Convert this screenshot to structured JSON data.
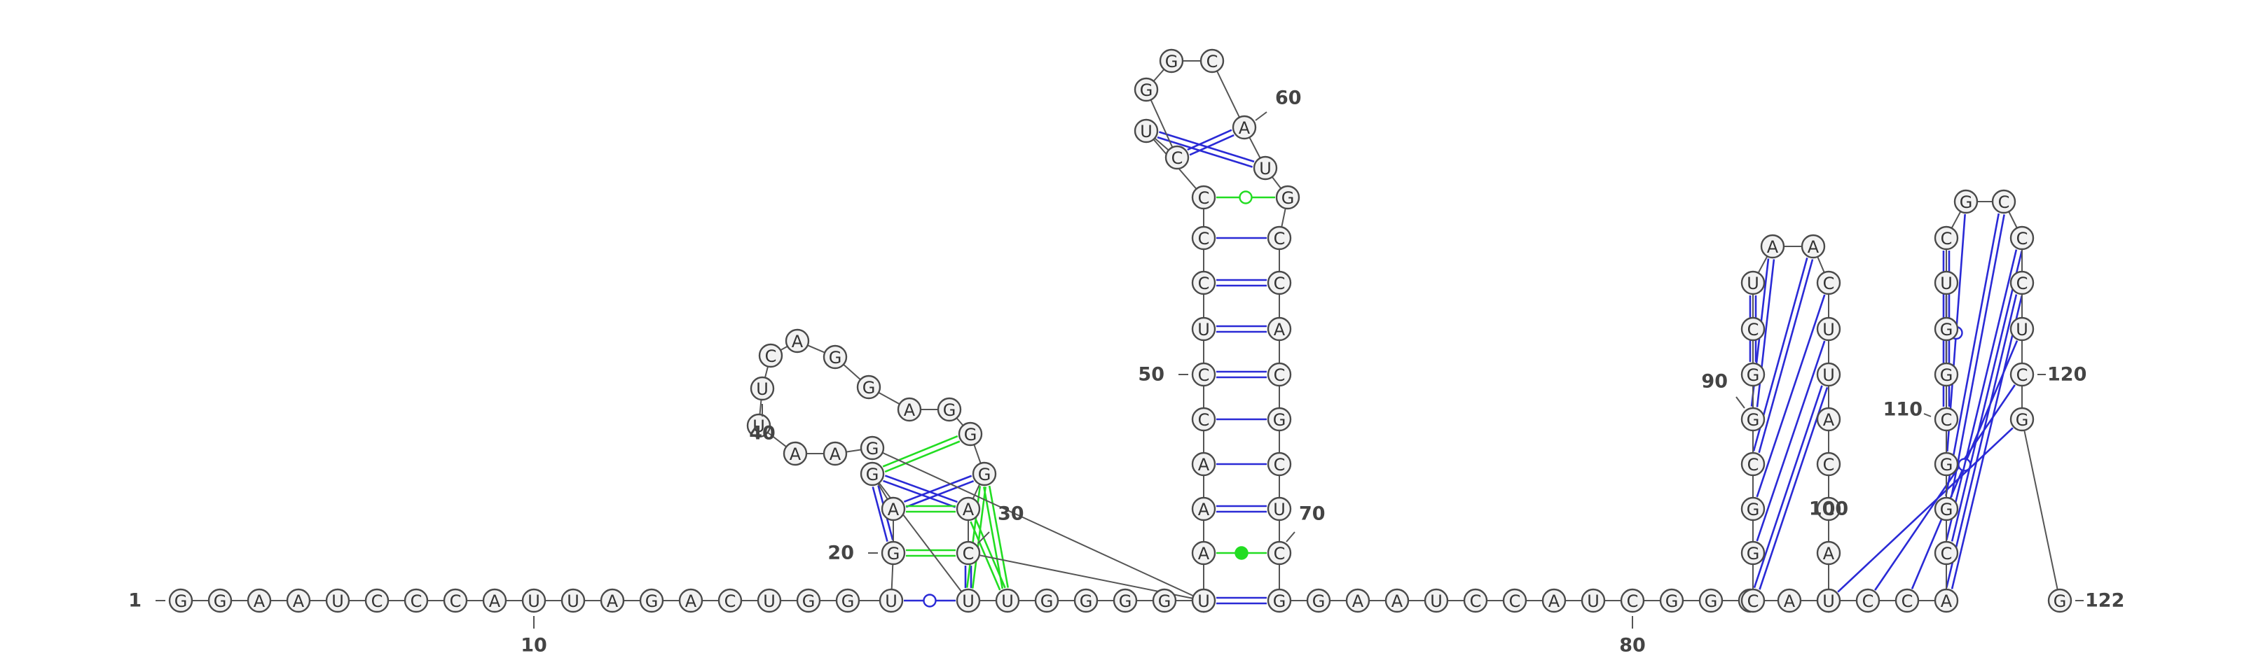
{
  "diagram": {
    "sequence": "GGAAUCCCAUUAGACUGGUGAGUUGGGGUCAGGGAGGACUUAAGUAAACCUCCCUCGGCAUGCCACGCUCGGAAUCCAUCGGCAACGGCGGCUAACUUACCAUCCACGGCGGUCGCCCUCGG",
    "sequence_length": 122,
    "colors": {
      "canonical_pair": "#2a2ad6",
      "noncanonical_pair": "#22dd22",
      "backbone": "#555555",
      "circle_fill": "#f2f2f2",
      "circle_stroke": "#4a4a4a",
      "text": "#333333"
    },
    "index_labels": [
      {
        "text": "1",
        "index": 1
      },
      {
        "text": "10",
        "index": 10
      },
      {
        "text": "20",
        "index": 20
      },
      {
        "text": "30",
        "index": 30
      },
      {
        "text": "40",
        "index": 40
      },
      {
        "text": "50",
        "index": 50
      },
      {
        "text": "60",
        "index": 60
      },
      {
        "text": "70",
        "index": 70
      },
      {
        "text": "80",
        "index": 80
      },
      {
        "text": "90",
        "index": 90
      },
      {
        "text": "100",
        "index": 100
      },
      {
        "text": "110",
        "index": 110
      },
      {
        "text": "120",
        "index": 120
      },
      {
        "text": "122",
        "index": 122
      }
    ],
    "pairs": [
      {
        "i": 19,
        "j": 23,
        "style": "circle",
        "color": "canonical"
      },
      {
        "i": 20,
        "j": 22,
        "style": "double",
        "color": "canonical"
      },
      {
        "i": 21,
        "j": 32,
        "style": "double",
        "color": "canonical"
      },
      {
        "i": 22,
        "j": 31,
        "style": "double",
        "color": "canonical"
      },
      {
        "i": 23,
        "j": 30,
        "style": "double",
        "color": "canonical"
      },
      {
        "i": 23,
        "j": 32,
        "style": "double",
        "color": "noncanonical"
      },
      {
        "i": 24,
        "j": 31,
        "style": "double",
        "color": "noncanonical"
      },
      {
        "i": 20,
        "j": 30,
        "style": "double",
        "color": "noncanonical"
      },
      {
        "i": 21,
        "j": 31,
        "style": "double",
        "color": "noncanonical"
      },
      {
        "i": 22,
        "j": 33,
        "style": "double",
        "color": "noncanonical"
      },
      {
        "i": 24,
        "j": 32,
        "style": "double",
        "color": "noncanonical"
      },
      {
        "i": 45,
        "j": 71,
        "style": "double",
        "color": "canonical"
      },
      {
        "i": 46,
        "j": 70,
        "style": "filled",
        "color": "noncanonical"
      },
      {
        "i": 47,
        "j": 69,
        "style": "double",
        "color": "canonical"
      },
      {
        "i": 48,
        "j": 68,
        "style": "single",
        "color": "canonical"
      },
      {
        "i": 49,
        "j": 67,
        "style": "single",
        "color": "canonical"
      },
      {
        "i": 50,
        "j": 66,
        "style": "double",
        "color": "canonical"
      },
      {
        "i": 51,
        "j": 65,
        "style": "double",
        "color": "canonical"
      },
      {
        "i": 52,
        "j": 64,
        "style": "double",
        "color": "canonical"
      },
      {
        "i": 53,
        "j": 63,
        "style": "single",
        "color": "canonical"
      },
      {
        "i": 54,
        "j": 62,
        "style": "circle",
        "color": "noncanonical"
      },
      {
        "i": 55,
        "j": 61,
        "style": "double",
        "color": "canonical"
      },
      {
        "i": 56,
        "j": 60,
        "style": "double",
        "color": "canonical"
      },
      {
        "i": 86,
        "j": 98,
        "style": "double",
        "color": "canonical"
      },
      {
        "i": 87,
        "j": 97,
        "style": "single",
        "color": "canonical"
      },
      {
        "i": 88,
        "j": 96,
        "style": "single",
        "color": "canonical"
      },
      {
        "i": 89,
        "j": 95,
        "style": "double",
        "color": "canonical"
      },
      {
        "i": 90,
        "j": 94,
        "style": "double",
        "color": "canonical"
      },
      {
        "i": 91,
        "j": 93,
        "style": "double",
        "color": "canonical"
      },
      {
        "i": 92,
        "j": 92,
        "style": "none",
        "color": "canonical"
      },
      {
        "i": 103,
        "j": 121,
        "style": "single",
        "color": "canonical"
      },
      {
        "i": 104,
        "j": 120,
        "style": "single",
        "color": "canonical"
      },
      {
        "i": 105,
        "j": 119,
        "style": "circle",
        "color": "canonical"
      },
      {
        "i": 106,
        "j": 118,
        "style": "double",
        "color": "canonical"
      },
      {
        "i": 107,
        "j": 117,
        "style": "double",
        "color": "canonical"
      },
      {
        "i": 108,
        "j": 116,
        "style": "double",
        "color": "canonical"
      },
      {
        "i": 109,
        "j": 115,
        "style": "circle",
        "color": "canonical"
      },
      {
        "i": 110,
        "j": 114,
        "style": "double",
        "color": "canonical"
      },
      {
        "i": 111,
        "j": 113,
        "style": "circle",
        "color": "canonical"
      }
    ]
  }
}
